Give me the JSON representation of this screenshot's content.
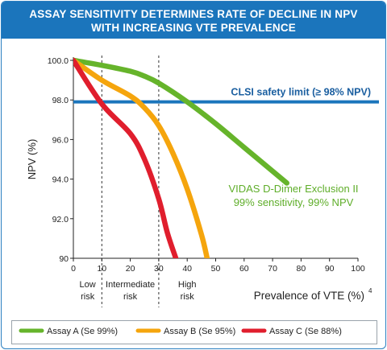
{
  "header": {
    "line1": "ASSAY SENSITIVITY DETERMINES RATE OF DECLINE IN NPV",
    "line2": "WITH INCREASING VTE PREVALENCE"
  },
  "colors": {
    "header_bg": "#1b75bc",
    "assay_a": "#66b42b",
    "assay_b": "#f5a50d",
    "assay_c": "#e01e2d",
    "safety_line": "#1b75bc",
    "annotation": "#5fae2a"
  },
  "chart_data": {
    "type": "line",
    "title": "ASSAY SENSITIVITY DETERMINES RATE OF DECLINE IN NPV WITH INCREASING VTE PREVALENCE",
    "xlabel": "Prevalence of VTE (%)",
    "xlabel_superscript": "4",
    "ylabel": "NPV (%)",
    "xlim": [
      0,
      100
    ],
    "ylim": [
      90,
      100
    ],
    "x_ticks": [
      0,
      10,
      20,
      30,
      40,
      50,
      60,
      70,
      80,
      90,
      100
    ],
    "x_tick_labels": [
      "0",
      "10",
      "20",
      "30",
      "40",
      "50",
      "60",
      "70",
      "80",
      "90",
      "100"
    ],
    "y_ticks": [
      90,
      92,
      94,
      96,
      98,
      100
    ],
    "y_tick_labels": [
      "90",
      "92.0",
      "94.0",
      "96.0",
      "98.0",
      "100.0"
    ],
    "grid": false,
    "series": [
      {
        "name": "Assay A (Se 99%)",
        "color": "#66b42b",
        "x": [
          0,
          10,
          20,
          25,
          30,
          40,
          50,
          60,
          75
        ],
        "y": [
          100,
          99.75,
          99.45,
          99.2,
          98.85,
          97.9,
          96.8,
          95.6,
          93.8
        ]
      },
      {
        "name": "Assay B (Se 95%)",
        "color": "#f5a50d",
        "x": [
          0,
          10,
          20,
          25,
          30,
          35,
          40,
          45,
          47
        ],
        "y": [
          100,
          99.0,
          98.2,
          97.6,
          96.7,
          95.3,
          93.5,
          91.2,
          90.0
        ]
      },
      {
        "name": "Assay C (Se 88%)",
        "color": "#e01e2d",
        "x": [
          0,
          10,
          20,
          25,
          30,
          33,
          36
        ],
        "y": [
          100,
          97.8,
          96.3,
          95.0,
          93.0,
          91.3,
          90.0
        ]
      }
    ],
    "reference_lines": [
      {
        "y": 97.9,
        "label": "CLSI safety limit (≥ 98% NPV)",
        "color": "#1b75bc"
      }
    ],
    "vertical_dividers": [
      10,
      30
    ],
    "regions": [
      {
        "lines": [
          "Low",
          "risk"
        ],
        "x_center": 5
      },
      {
        "lines": [
          "Intermediate",
          "risk"
        ],
        "x_center": 20
      },
      {
        "lines": [
          "High",
          "risk"
        ],
        "x_center": 40
      }
    ],
    "annotations": [
      {
        "lines": [
          "VIDAS D-Dimer Exclusion II",
          "99% sensitivity, 99% NPV"
        ],
        "color": "#5fae2a"
      }
    ],
    "legend_position": "bottom"
  }
}
